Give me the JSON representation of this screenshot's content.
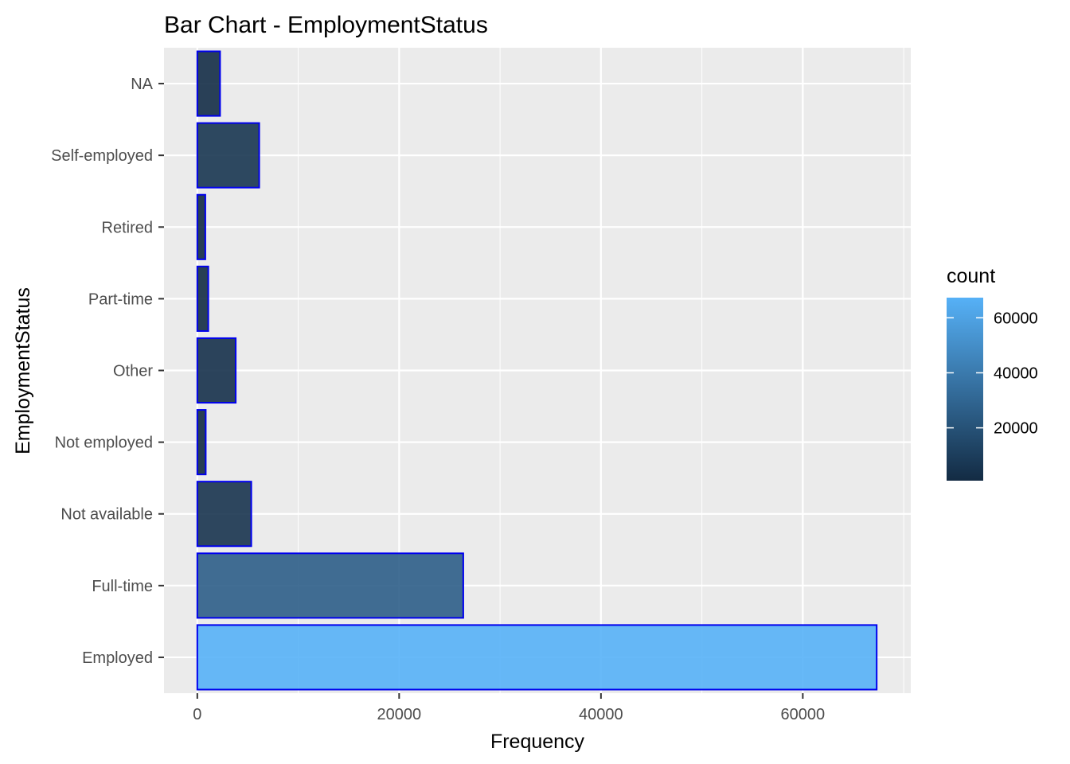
{
  "chart_data": {
    "type": "bar",
    "orientation": "horizontal",
    "title": "Bar Chart - EmploymentStatus",
    "xlabel": "Frequency",
    "ylabel": "EmploymentStatus",
    "categories": [
      "Employed",
      "Full-time",
      "Not available",
      "Not employed",
      "Other",
      "Part-time",
      "Retired",
      "Self-employed",
      "NA"
    ],
    "values": [
      67322,
      26355,
      5347,
      835,
      3806,
      1088,
      795,
      6134,
      2255
    ],
    "xlim": [
      -3300,
      70700
    ],
    "x_ticks": [
      0,
      20000,
      40000,
      60000
    ],
    "x_tick_labels": [
      "0",
      "20000",
      "40000",
      "60000"
    ],
    "grid": true,
    "bar_border_color": "#0000ee",
    "panel_background": "#ebebeb",
    "grid_color": "#ffffff",
    "legend": {
      "title": "count",
      "placement": "right",
      "range": [
        795,
        67322
      ],
      "ticks": [
        20000,
        40000,
        60000
      ],
      "tick_labels": [
        "20000",
        "40000",
        "60000"
      ],
      "low_color": "#132b43",
      "high_color": "#56b1f7"
    }
  }
}
